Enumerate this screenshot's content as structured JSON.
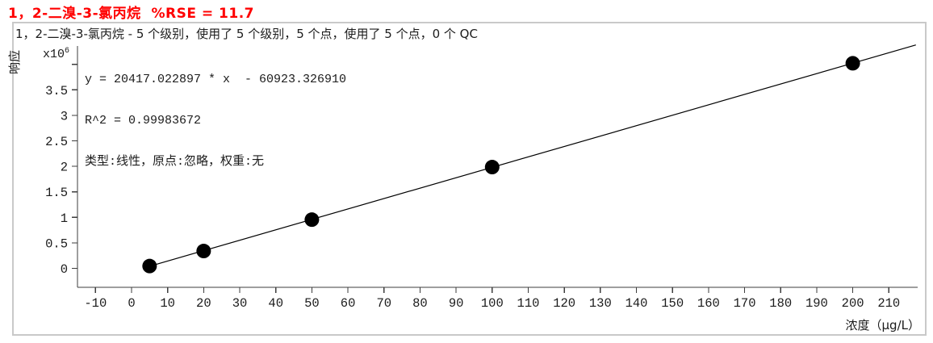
{
  "title": {
    "text": "1，2-二溴-3-氯丙烷  %RSE = 11.7",
    "color": "#ff0000"
  },
  "subtitle": "1，2-二溴-3-氯丙烷 - 5 个级别，使用了 5 个级别，5 个点，使用了 5 个点，0 个 QC",
  "stats": {
    "equation": "y = 20417.022897 * x  - 60923.326910",
    "r2": "R^2 = 0.99983672",
    "fit_type": "类型:线性，原点:忽略，权重:无"
  },
  "axes": {
    "x_label": "浓度（μg/L）",
    "y_label": "响应",
    "y_multiplier_base": "x10",
    "y_multiplier_exp": "6"
  },
  "chart_data": {
    "type": "scatter",
    "title": "1，2-二溴-3-氯丙烷  %RSE = 11.7",
    "xlabel": "浓度（μg/L）",
    "ylabel": "响应",
    "y_unit_multiplier": "x10^6",
    "grid": false,
    "legend": null,
    "x_range": [
      -15,
      218
    ],
    "y_range": [
      0,
      4400000
    ],
    "x_ticks": [
      -10,
      0,
      10,
      20,
      30,
      40,
      50,
      60,
      70,
      80,
      90,
      100,
      110,
      120,
      130,
      140,
      150,
      160,
      170,
      180,
      190,
      200,
      210
    ],
    "y_ticks": [
      {
        "v": 0,
        "label": "0"
      },
      {
        "v": 0.5,
        "label": "0.5"
      },
      {
        "v": 1,
        "label": "1"
      },
      {
        "v": 1.5,
        "label": "1.5"
      },
      {
        "v": 2,
        "label": "2"
      },
      {
        "v": 2.5,
        "label": "2.5"
      },
      {
        "v": 3,
        "label": "3"
      },
      {
        "v": 3.5,
        "label": "3.5"
      },
      {
        "v": 4,
        "label": ""
      }
    ],
    "points": [
      {
        "conc": 5,
        "response": 45000
      },
      {
        "conc": 20,
        "response": 340000
      },
      {
        "conc": 50,
        "response": 955000
      },
      {
        "conc": 100,
        "response": 1985000
      },
      {
        "conc": 200,
        "response": 4020000
      }
    ],
    "fit": {
      "type": "linear",
      "slope": 20417.022897,
      "intercept": -60923.32691,
      "r2": 0.99983672,
      "rse_percent": 11.7,
      "origin": "忽略",
      "weight": "无",
      "line_x_start": 4.5,
      "line_x_end": 217.5
    }
  }
}
